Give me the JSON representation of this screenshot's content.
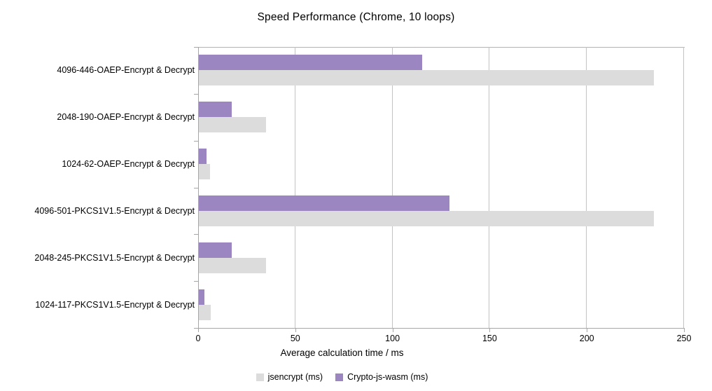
{
  "chart_data": {
    "type": "bar",
    "orientation": "horizontal",
    "title": "Speed Performance (Chrome, 10 loops)",
    "xlabel": "Average calculation time / ms",
    "categories": [
      "4096-446-OAEP-Encrypt & Decrypt",
      "2048-190-OAEP-Encrypt & Decrypt",
      "1024-62-OAEP-Encrypt & Decrypt",
      "4096-501-PKCS1V1.5-Encrypt & Decrypt",
      "2048-245-PKCS1V1.5-Encrypt & Decrypt",
      "1024-117-PKCS1V1.5-Encrypt & Decrypt"
    ],
    "series": [
      {
        "name": "jsencrypt (ms)",
        "color": "#dcdcdc",
        "values": [
          234,
          34.5,
          5.7,
          234,
          34.5,
          6
        ]
      },
      {
        "name": "Crypto-js-wasm (ms)",
        "color": "#9b86c2",
        "values": [
          115,
          17,
          4,
          129,
          17,
          3
        ]
      }
    ],
    "xlim": [
      0,
      250
    ],
    "xticks": [
      0,
      50,
      100,
      150,
      200,
      250
    ],
    "grid": "vertical-major",
    "legend_position": "bottom",
    "bar_order_note": "Crypto-js-wasm drawn above jsencrypt within each category group"
  }
}
